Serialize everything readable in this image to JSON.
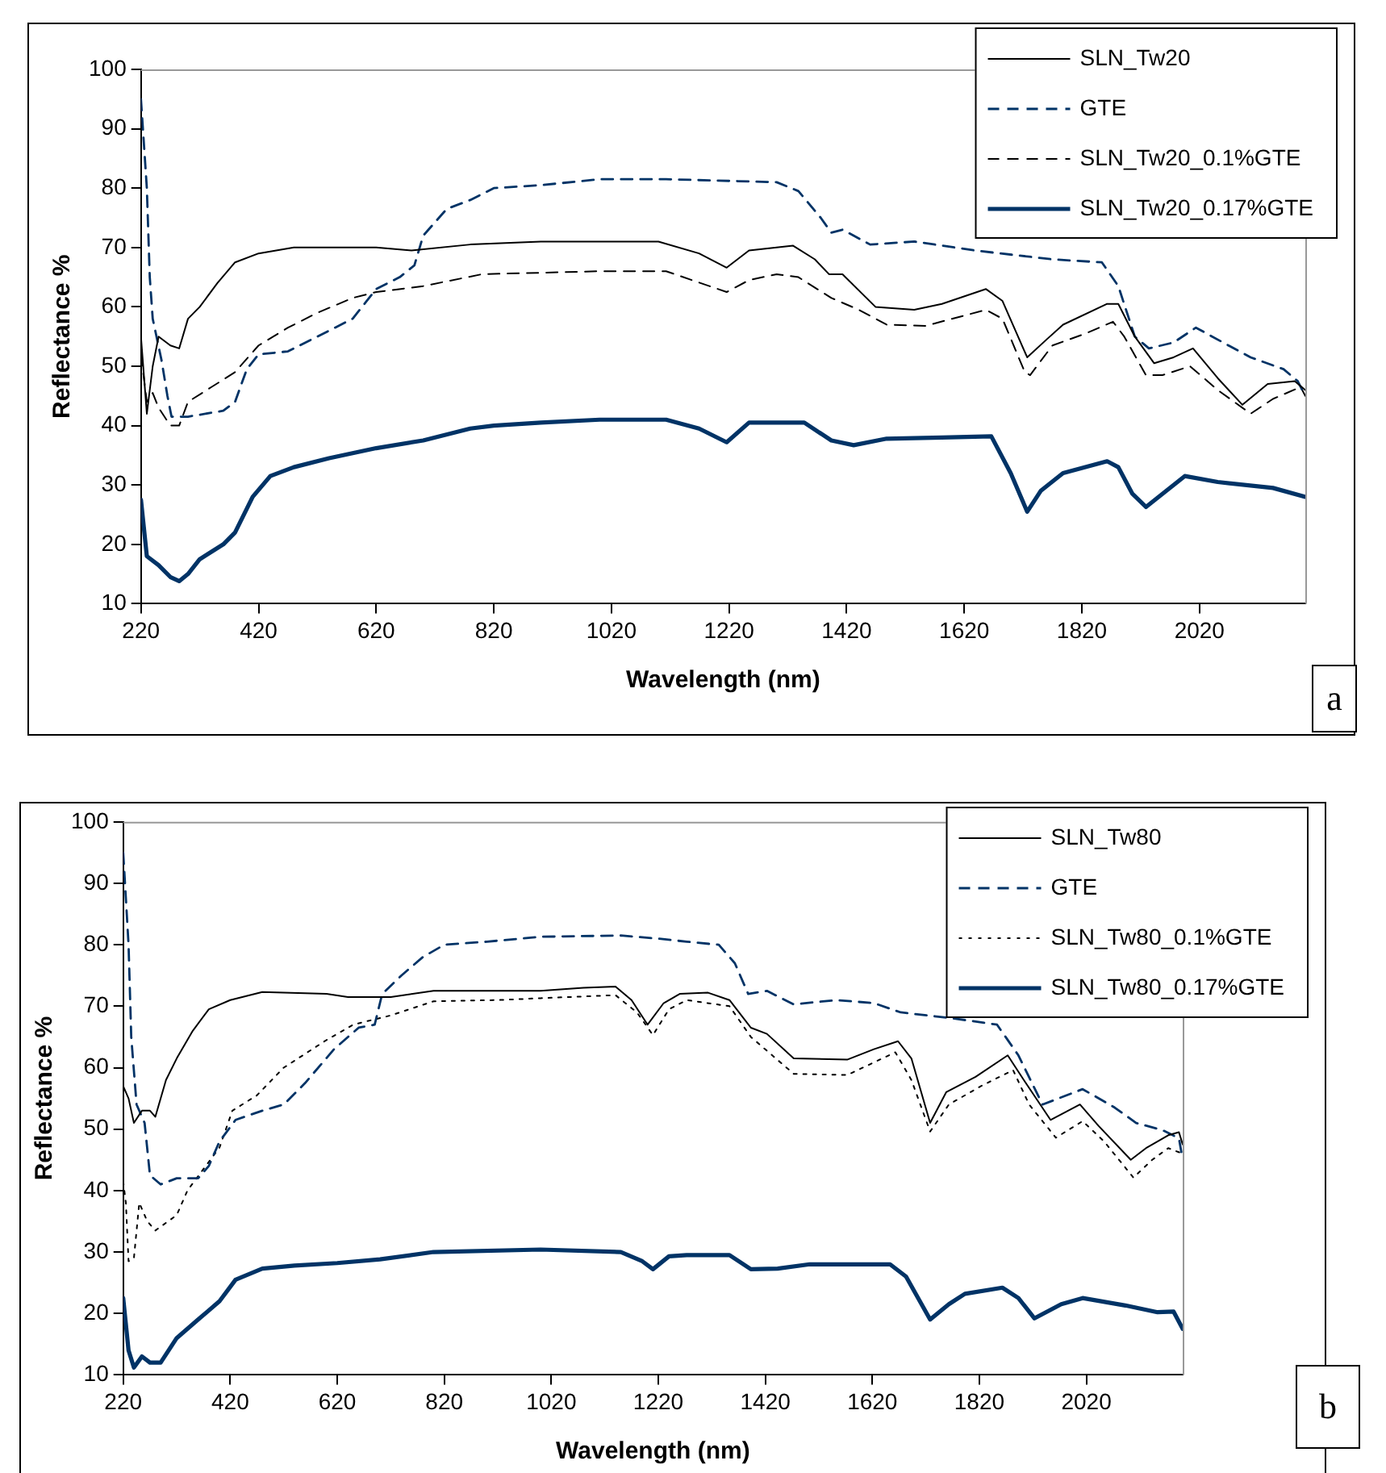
{
  "chart_data": [
    {
      "type": "line",
      "xlabel": "Wavelength (nm)",
      "ylabel": "Reflectance %",
      "xlim": [
        220,
        2200
      ],
      "ylim": [
        10,
        100
      ],
      "xticks": [
        220,
        420,
        620,
        820,
        1020,
        1220,
        1420,
        1620,
        1820,
        2020
      ],
      "yticks": [
        10,
        20,
        30,
        40,
        50,
        60,
        70,
        80,
        90,
        100
      ],
      "grid": false,
      "legend": "top right",
      "marker": "none",
      "annotations": [
        "a"
      ],
      "series": [
        {
          "name": "SLN_Tw20",
          "color": "#000000",
          "line_style": "solid",
          "x": [
            220,
            230,
            240,
            250,
            270,
            285,
            300,
            320,
            350,
            380,
            420,
            480,
            620,
            680,
            780,
            900,
            1100,
            1169,
            1216,
            1254,
            1329,
            1366,
            1390,
            1413,
            1469,
            1535,
            1582,
            1657,
            1685,
            1727,
            1760,
            1788,
            1863,
            1882,
            1910,
            1943,
            1976,
            2009,
            2051,
            2093,
            2136,
            2182,
            2200
          ],
          "values": [
            55,
            42,
            50,
            55,
            53.5,
            53,
            58,
            60,
            64,
            67.5,
            69,
            70,
            70,
            69.5,
            70.5,
            71,
            71,
            69,
            66.6,
            69.5,
            70.3,
            68,
            65.5,
            65.5,
            60,
            59.5,
            60.5,
            63,
            61,
            51.5,
            54.5,
            57,
            60.5,
            60.5,
            55,
            50.5,
            51.5,
            53,
            48,
            43.5,
            47,
            47.5,
            46
          ]
        },
        {
          "name": "GTE",
          "color": "#003366",
          "line_style": "dashed",
          "x": [
            220,
            230,
            235,
            240,
            255,
            265,
            272,
            300,
            360,
            380,
            400,
            420,
            470,
            520,
            580,
            620,
            660,
            685,
            700,
            740,
            780,
            820,
            900,
            1000,
            1113,
            1301,
            1338,
            1376,
            1394,
            1413,
            1460,
            1535,
            1638,
            1770,
            1854,
            1882,
            1910,
            1934,
            1976,
            2014,
            2060,
            2107,
            2163,
            2187,
            2200
          ],
          "values": [
            95,
            80,
            65,
            58,
            51,
            45,
            41.5,
            41.5,
            42.5,
            44,
            49.5,
            52,
            52.5,
            55,
            58,
            63,
            65,
            67,
            72,
            76.5,
            78,
            80,
            80.5,
            81.5,
            81.5,
            81,
            79.5,
            75,
            72.5,
            73,
            70.5,
            71,
            69.5,
            68,
            67.5,
            63.5,
            55,
            53,
            54,
            56.5,
            54,
            51.5,
            49.5,
            47.5,
            45
          ]
        },
        {
          "name": "SLN_Tw20_0.1%GTE",
          "color": "#000000",
          "line_style": "dashed",
          "x": [
            220,
            230,
            240,
            250,
            270,
            285,
            300,
            340,
            380,
            420,
            470,
            520,
            580,
            620,
            700,
            800,
            1000,
            1113,
            1216,
            1254,
            1301,
            1338,
            1394,
            1441,
            1488,
            1554,
            1657,
            1685,
            1723,
            1732,
            1770,
            1826,
            1873,
            1892,
            1929,
            1957,
            2004,
            2051,
            2107,
            2145,
            2192,
            2200
          ],
          "values": [
            52,
            44,
            45.5,
            43,
            40,
            40,
            44,
            46.5,
            49,
            53.5,
            56.5,
            59,
            61.5,
            62.5,
            63.5,
            65.5,
            66,
            66,
            62.5,
            64.5,
            65.5,
            65,
            61.5,
            59.5,
            57,
            56.8,
            59.5,
            58,
            49,
            48.5,
            53.5,
            55.5,
            57.5,
            55,
            48.5,
            48.5,
            50,
            46,
            42,
            44.5,
            46.5,
            45
          ]
        },
        {
          "name": "SLN_Tw20_0.17%GTE",
          "color": "#003366",
          "line_style": "solid",
          "x": [
            220,
            230,
            250,
            270,
            285,
            300,
            320,
            360,
            380,
            410,
            440,
            480,
            540,
            620,
            700,
            780,
            820,
            900,
            1000,
            1113,
            1169,
            1216,
            1254,
            1348,
            1394,
            1432,
            1488,
            1582,
            1666,
            1699,
            1727,
            1750,
            1788,
            1863,
            1882,
            1906,
            1929,
            1957,
            1995,
            2051,
            2145,
            2200
          ],
          "values": [
            27.5,
            18,
            16.5,
            14.5,
            13.8,
            15,
            17.5,
            20,
            22,
            28,
            31.5,
            33,
            34.5,
            36.2,
            37.5,
            39.5,
            40,
            40.5,
            41,
            41,
            39.5,
            37.2,
            40.5,
            40.5,
            37.5,
            36.7,
            37.8,
            38,
            38.2,
            32,
            25.5,
            29,
            32,
            34,
            33,
            28.5,
            26.3,
            28.5,
            31.5,
            30.5,
            29.5,
            28
          ]
        }
      ]
    },
    {
      "type": "line",
      "xlabel": "Wavelength (nm)",
      "ylabel": "Reflectance %",
      "xlim": [
        220,
        2200
      ],
      "ylim": [
        10,
        100
      ],
      "xticks": [
        220,
        420,
        620,
        820,
        1020,
        1220,
        1420,
        1620,
        1820,
        2020
      ],
      "yticks": [
        10,
        20,
        30,
        40,
        50,
        60,
        70,
        80,
        90,
        100
      ],
      "grid": false,
      "legend": "top right",
      "marker": "none",
      "annotations": [
        "b"
      ],
      "series": [
        {
          "name": "SLN_Tw80",
          "color": "#000000",
          "line_style": "solid",
          "x": [
            220,
            230,
            240,
            255,
            270,
            280,
            300,
            320,
            350,
            380,
            420,
            480,
            600,
            640,
            720,
            800,
            1000,
            1080,
            1140,
            1170,
            1200,
            1230,
            1260,
            1313,
            1353,
            1393,
            1423,
            1473,
            1573,
            1623,
            1668,
            1693,
            1728,
            1758,
            1813,
            1873,
            1903,
            1953,
            2008,
            2043,
            2103,
            2133,
            2173,
            2193,
            2200
          ],
          "values": [
            57,
            55,
            51,
            53,
            53,
            52,
            58,
            61.5,
            66,
            69.5,
            71,
            72.3,
            72,
            71.5,
            71.5,
            72.5,
            72.5,
            73,
            73.2,
            71,
            67,
            70.5,
            72,
            72.2,
            71,
            66.5,
            65.5,
            61.5,
            61.3,
            63,
            64.3,
            61.5,
            51,
            56,
            58.5,
            62,
            58,
            51.5,
            54,
            50.5,
            45,
            47,
            49,
            49.5,
            47.5
          ]
        },
        {
          "name": "GTE",
          "color": "#003366",
          "line_style": "dashed",
          "x": [
            220,
            230,
            235,
            245,
            260,
            270,
            290,
            320,
            360,
            380,
            400,
            430,
            480,
            520,
            560,
            614,
            660,
            690,
            704,
            740,
            780,
            820,
            900,
            1000,
            1150,
            1220,
            1273,
            1333,
            1363,
            1388,
            1423,
            1473,
            1553,
            1623,
            1673,
            1773,
            1853,
            1893,
            1938,
            2013,
            2073,
            2113,
            2163,
            2193,
            2200
          ],
          "values": [
            95,
            80,
            65,
            54,
            51,
            42.5,
            41,
            42,
            42,
            44,
            48,
            51.5,
            53,
            54,
            57.5,
            63,
            66.5,
            67,
            72,
            75,
            78,
            80,
            80.5,
            81.3,
            81.5,
            81,
            80.5,
            80,
            77,
            72,
            72.5,
            70.3,
            71,
            70.5,
            69,
            68,
            67,
            62,
            54,
            56.5,
            53.5,
            51,
            49.8,
            48.5,
            45
          ]
        },
        {
          "name": "SLN_Tw80_0.1%GTE",
          "color": "#000000",
          "line_style": "dotted",
          "x": [
            220,
            225,
            230,
            240,
            250,
            265,
            280,
            320,
            340,
            400,
            424,
            470,
            520,
            600,
            650,
            720,
            800,
            920,
            1000,
            1140,
            1180,
            1210,
            1240,
            1273,
            1353,
            1393,
            1473,
            1573,
            1663,
            1693,
            1728,
            1763,
            1823,
            1883,
            1913,
            1963,
            2013,
            2053,
            2108,
            2143,
            2173,
            2200
          ],
          "values": [
            41.5,
            38,
            28.5,
            29,
            38,
            35,
            33.5,
            36,
            40,
            47,
            53,
            55.5,
            60,
            64.5,
            67,
            68.5,
            70.8,
            71,
            71.3,
            71.8,
            69,
            65.3,
            69.5,
            71,
            70,
            65,
            59,
            58.8,
            62.5,
            58,
            49.6,
            54,
            57,
            59.6,
            54,
            48.6,
            51.3,
            48,
            42.1,
            45,
            46.9,
            46
          ]
        },
        {
          "name": "SLN_Tw80_0.17%GTE",
          "color": "#003366",
          "line_style": "solid",
          "x": [
            220,
            230,
            240,
            255,
            270,
            290,
            320,
            360,
            400,
            430,
            480,
            540,
            620,
            700,
            800,
            1000,
            1150,
            1190,
            1210,
            1240,
            1273,
            1353,
            1393,
            1443,
            1503,
            1653,
            1683,
            1728,
            1763,
            1793,
            1863,
            1893,
            1923,
            1973,
            2013,
            2093,
            2153,
            2183,
            2200
          ],
          "values": [
            22.5,
            14,
            11.2,
            13,
            12,
            12,
            16,
            19,
            22,
            25.5,
            27.3,
            27.8,
            28.2,
            28.8,
            30,
            30.4,
            30,
            28.5,
            27.2,
            29.3,
            29.5,
            29.5,
            27.2,
            27.3,
            28,
            28,
            26,
            19,
            21.5,
            23.2,
            24.2,
            22.5,
            19.2,
            21.5,
            22.5,
            21.3,
            20.2,
            20.3,
            17.5
          ]
        }
      ]
    }
  ]
}
